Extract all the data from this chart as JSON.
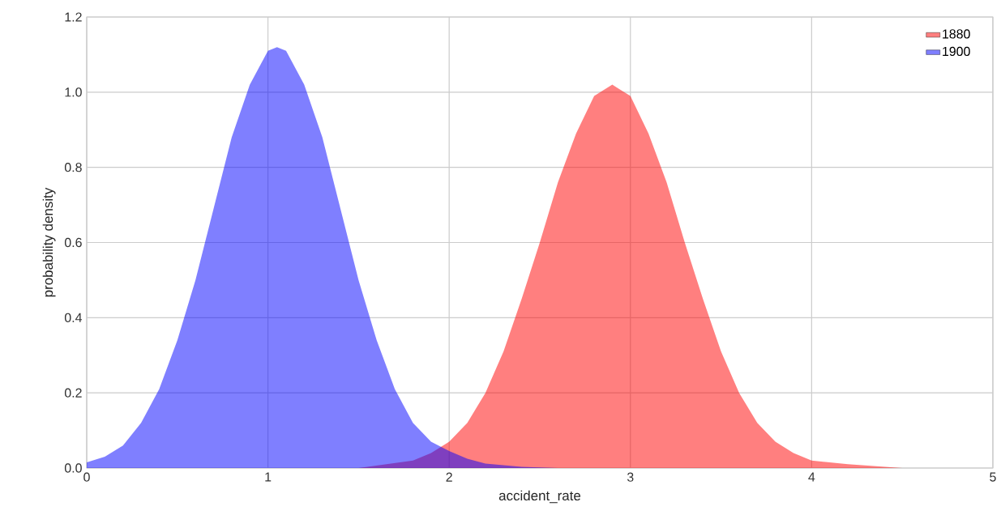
{
  "chart_data": {
    "type": "area",
    "xlabel": "accident_rate",
    "ylabel": "probability density",
    "xlim": [
      0,
      5
    ],
    "ylim": [
      0,
      1.2
    ],
    "xticks": [
      0,
      1,
      2,
      3,
      4,
      5
    ],
    "yticks": [
      {
        "value": 0,
        "label": "0.0"
      },
      {
        "value": 0.2,
        "label": "0.2"
      },
      {
        "value": 0.4,
        "label": "0.4"
      },
      {
        "value": 0.6,
        "label": "0.6"
      },
      {
        "value": 0.8,
        "label": "0.8"
      },
      {
        "value": 1.0,
        "label": "1.0"
      },
      {
        "value": 1.2,
        "label": "1.2"
      }
    ],
    "grid": true,
    "legend": "top right",
    "series": [
      {
        "name": "1880",
        "color": "#ff0000",
        "x": [
          0,
          1.5,
          1.8,
          1.9,
          2.0,
          2.1,
          2.2,
          2.3,
          2.4,
          2.5,
          2.6,
          2.7,
          2.8,
          2.9,
          3.0,
          3.1,
          3.2,
          3.3,
          3.4,
          3.5,
          3.6,
          3.7,
          3.8,
          3.9,
          4.0,
          4.2,
          4.5,
          5.0
        ],
        "values": [
          0,
          0,
          0.02,
          0.04,
          0.07,
          0.12,
          0.2,
          0.31,
          0.45,
          0.6,
          0.76,
          0.89,
          0.99,
          1.02,
          0.99,
          0.89,
          0.76,
          0.6,
          0.45,
          0.31,
          0.2,
          0.12,
          0.07,
          0.04,
          0.02,
          0.01,
          0,
          0
        ]
      },
      {
        "name": "1900",
        "color": "#0000ff",
        "x": [
          0,
          0.1,
          0.2,
          0.3,
          0.4,
          0.5,
          0.6,
          0.7,
          0.8,
          0.9,
          1.0,
          1.05,
          1.1,
          1.2,
          1.3,
          1.4,
          1.5,
          1.6,
          1.7,
          1.8,
          1.9,
          2.0,
          2.1,
          2.2,
          2.4,
          2.6,
          5.0
        ],
        "values": [
          0.015,
          0.03,
          0.06,
          0.12,
          0.21,
          0.34,
          0.5,
          0.69,
          0.88,
          1.02,
          1.11,
          1.12,
          1.11,
          1.02,
          0.88,
          0.69,
          0.5,
          0.34,
          0.21,
          0.12,
          0.07,
          0.045,
          0.025,
          0.012,
          0.003,
          0,
          0
        ]
      }
    ]
  }
}
